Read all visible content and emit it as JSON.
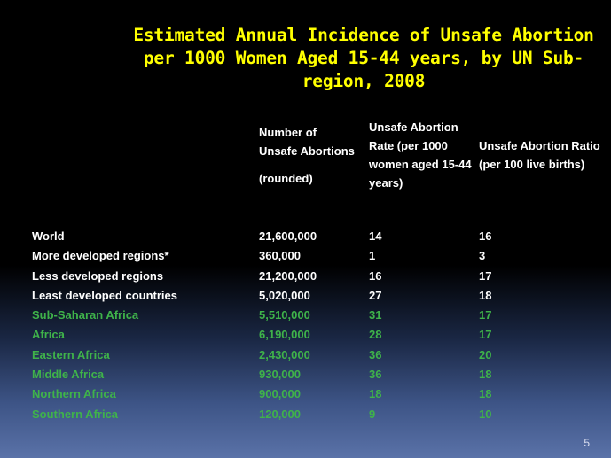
{
  "title": "Estimated Annual Incidence of Unsafe Abortion per 1000 Women Aged 15-44 years, by UN Sub-region, 2008",
  "headers": {
    "col1_main": "Number of Unsafe Abortions",
    "col1_sub": "(rounded)",
    "col2": "Unsafe Abortion Rate (per 1000 women aged 15-44 years)",
    "col3": "Unsafe Abortion Ratio (per 100 live births)"
  },
  "rows": [
    {
      "region": "World",
      "number": "21,600,000",
      "rate": "14",
      "ratio": "16"
    },
    {
      "region": "More developed regions*",
      "number": "360,000",
      "rate": "1",
      "ratio": "3"
    },
    {
      "region": "Less developed regions",
      "number": "21,200,000",
      "rate": "16",
      "ratio": "17"
    },
    {
      "region": "Least developed countries",
      "number": "5,020,000",
      "rate": "27",
      "ratio": "18"
    },
    {
      "region": "Sub-Saharan Africa",
      "number": "5,510,000",
      "rate": "31",
      "ratio": "17"
    },
    {
      "region": "Africa",
      "number": "6,190,000",
      "rate": "28",
      "ratio": "17"
    },
    {
      "region": "Eastern Africa",
      "number": "2,430,000",
      "rate": "36",
      "ratio": "20"
    },
    {
      "region": "Middle Africa",
      "number": "930,000",
      "rate": "36",
      "ratio": "18"
    },
    {
      "region": "Northern Africa",
      "number": "900,000",
      "rate": "18",
      "ratio": "18"
    },
    {
      "region": "Southern Africa",
      "number": "120,000",
      "rate": "9",
      "ratio": "10"
    }
  ],
  "page_number": "5",
  "colors": {
    "title": "#ffff00",
    "summary_rows": "#ffffff",
    "africa_rows": "#3fb34a",
    "background_top": "#000000",
    "background_bottom": "#5a72a8"
  }
}
